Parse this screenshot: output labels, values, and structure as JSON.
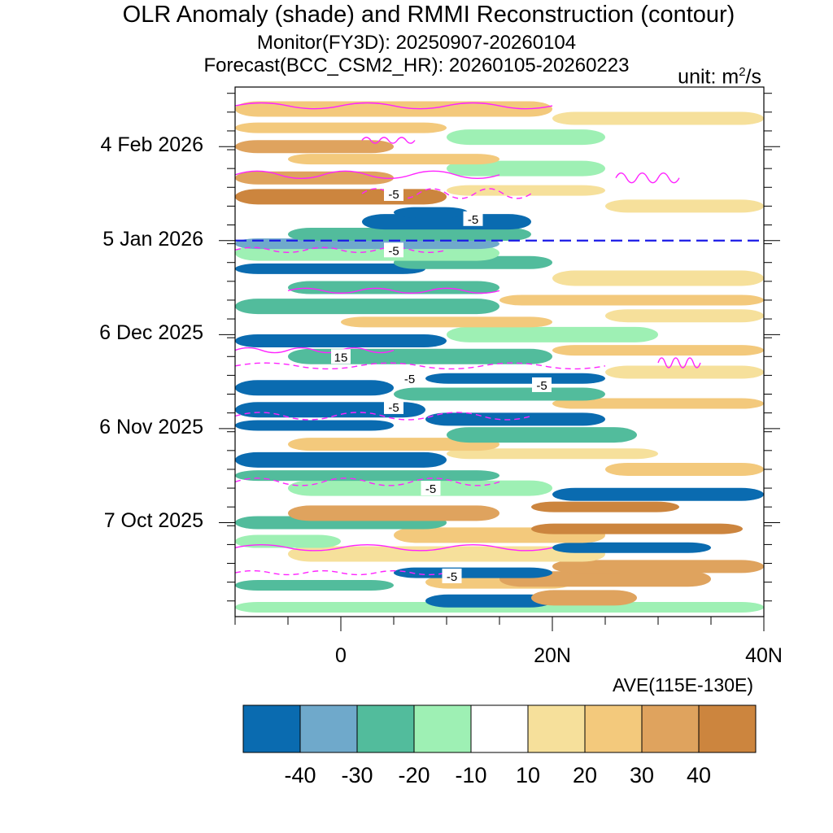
{
  "chart_data": {
    "type": "heatmap",
    "title": "OLR Anomaly (shade) and RMMI Reconstruction (contour)",
    "subtitle_monitor": "Monitor(FY3D): 20250907-20260104",
    "subtitle_forecast": "Forecast(BCC_CSM2_HR): 20260105-20260223",
    "unit_prefix": "unit: m",
    "unit_exp": "2",
    "unit_suffix": "/s",
    "x_axis": {
      "range": [
        -10,
        40
      ],
      "ticks": [
        {
          "value": 0,
          "label": "0"
        },
        {
          "value": 20,
          "label": "20N"
        },
        {
          "value": 40,
          "label": "40N"
        }
      ],
      "note": "AVE(115E-130E)"
    },
    "y_axis": {
      "start_date": "2025-09-07",
      "end_date": "2026-02-23",
      "ticks": [
        {
          "day": 30,
          "label": "7 Oct 2025"
        },
        {
          "day": 60,
          "label": "6 Nov 2025"
        },
        {
          "day": 90,
          "label": "6 Dec 2025"
        },
        {
          "day": 120,
          "label": "5 Jan 2026"
        },
        {
          "day": 150,
          "label": "4 Feb 2026"
        }
      ],
      "forecast_start_day": 120
    },
    "colorbar": {
      "levels": [
        -40,
        -30,
        -20,
        -10,
        10,
        20,
        30,
        40
      ],
      "labels": [
        "-40",
        "-30",
        "-20",
        "-10",
        "10",
        "20",
        "30",
        "40"
      ],
      "colors": [
        "#0a6bb0",
        "#6fa9cb",
        "#52bc9c",
        "#9ef0b4",
        "#ffffff",
        "#f6e09b",
        "#f3c97c",
        "#dfa35e",
        "#cc853e"
      ]
    },
    "olr_bands": [
      {
        "day": 3,
        "lat": [
          -10,
          40
        ],
        "value": -15
      },
      {
        "day": 5,
        "lat": [
          8,
          20
        ],
        "value": -45
      },
      {
        "day": 6,
        "lat": [
          18,
          28
        ],
        "value": 35
      },
      {
        "day": 10,
        "lat": [
          -10,
          5
        ],
        "value": -25
      },
      {
        "day": 11,
        "lat": [
          8,
          22
        ],
        "value": 25
      },
      {
        "day": 12,
        "lat": [
          15,
          35
        ],
        "value": 35
      },
      {
        "day": 14,
        "lat": [
          5,
          20
        ],
        "value": -45
      },
      {
        "day": 16,
        "lat": [
          20,
          40
        ],
        "value": 35
      },
      {
        "day": 20,
        "lat": [
          -5,
          25
        ],
        "value": 15
      },
      {
        "day": 22,
        "lat": [
          20,
          35
        ],
        "value": -45
      },
      {
        "day": 24,
        "lat": [
          -10,
          0
        ],
        "value": -15
      },
      {
        "day": 26,
        "lat": [
          5,
          25
        ],
        "value": 25
      },
      {
        "day": 28,
        "lat": [
          18,
          38
        ],
        "value": 45
      },
      {
        "day": 30,
        "lat": [
          -10,
          10
        ],
        "value": -25
      },
      {
        "day": 33,
        "lat": [
          -5,
          15
        ],
        "value": 35
      },
      {
        "day": 35,
        "lat": [
          18,
          32
        ],
        "value": 45
      },
      {
        "day": 39,
        "lat": [
          20,
          40
        ],
        "value": -45
      },
      {
        "day": 41,
        "lat": [
          -5,
          20
        ],
        "value": -15
      },
      {
        "day": 45,
        "lat": [
          -10,
          15
        ],
        "value": -25
      },
      {
        "day": 47,
        "lat": [
          25,
          40
        ],
        "value": 25
      },
      {
        "day": 50,
        "lat": [
          -10,
          10
        ],
        "value": -45
      },
      {
        "day": 52,
        "lat": [
          10,
          30
        ],
        "value": 15
      },
      {
        "day": 55,
        "lat": [
          -5,
          15
        ],
        "value": 25
      },
      {
        "day": 58,
        "lat": [
          10,
          28
        ],
        "value": -25
      },
      {
        "day": 61,
        "lat": [
          -10,
          5
        ],
        "value": -45
      },
      {
        "day": 63,
        "lat": [
          8,
          25
        ],
        "value": -45
      },
      {
        "day": 66,
        "lat": [
          -10,
          8
        ],
        "value": -45
      },
      {
        "day": 68,
        "lat": [
          20,
          40
        ],
        "value": 25
      },
      {
        "day": 71,
        "lat": [
          5,
          25
        ],
        "value": -25
      },
      {
        "day": 73,
        "lat": [
          -10,
          5
        ],
        "value": -45
      },
      {
        "day": 76,
        "lat": [
          8,
          25
        ],
        "value": -45
      },
      {
        "day": 78,
        "lat": [
          25,
          40
        ],
        "value": 15
      },
      {
        "day": 83,
        "lat": [
          -5,
          20
        ],
        "value": -25
      },
      {
        "day": 85,
        "lat": [
          20,
          40
        ],
        "value": 25
      },
      {
        "day": 88,
        "lat": [
          -10,
          10
        ],
        "value": -45
      },
      {
        "day": 90,
        "lat": [
          10,
          30
        ],
        "value": -15
      },
      {
        "day": 94,
        "lat": [
          0,
          20
        ],
        "value": 25
      },
      {
        "day": 96,
        "lat": [
          25,
          40
        ],
        "value": 15
      },
      {
        "day": 99,
        "lat": [
          -10,
          15
        ],
        "value": -25
      },
      {
        "day": 101,
        "lat": [
          15,
          40
        ],
        "value": 25
      },
      {
        "day": 105,
        "lat": [
          -5,
          15
        ],
        "value": -25
      },
      {
        "day": 108,
        "lat": [
          20,
          40
        ],
        "value": 15
      },
      {
        "day": 111,
        "lat": [
          -10,
          8
        ],
        "value": -45
      },
      {
        "day": 113,
        "lat": [
          5,
          20
        ],
        "value": -25
      },
      {
        "day": 116,
        "lat": [
          -10,
          15
        ],
        "value": -15
      },
      {
        "day": 119,
        "lat": [
          -10,
          15
        ],
        "value": -35
      },
      {
        "day": 122,
        "lat": [
          -5,
          18
        ],
        "value": -25
      },
      {
        "day": 126,
        "lat": [
          2,
          18
        ],
        "value": -45
      },
      {
        "day": 129,
        "lat": [
          5,
          12
        ],
        "value": -45
      },
      {
        "day": 131,
        "lat": [
          25,
          40
        ],
        "value": 15
      },
      {
        "day": 134,
        "lat": [
          -10,
          10
        ],
        "value": 45
      },
      {
        "day": 136,
        "lat": [
          10,
          25
        ],
        "value": 15
      },
      {
        "day": 140,
        "lat": [
          -10,
          5
        ],
        "value": 35
      },
      {
        "day": 143,
        "lat": [
          10,
          25
        ],
        "value": -15
      },
      {
        "day": 146,
        "lat": [
          -5,
          15
        ],
        "value": 25
      },
      {
        "day": 150,
        "lat": [
          -10,
          5
        ],
        "value": 35
      },
      {
        "day": 153,
        "lat": [
          10,
          25
        ],
        "value": -15
      },
      {
        "day": 156,
        "lat": [
          -10,
          10
        ],
        "value": 25
      },
      {
        "day": 159,
        "lat": [
          20,
          40
        ],
        "value": 15
      },
      {
        "day": 162,
        "lat": [
          -10,
          20
        ],
        "value": 25
      }
    ],
    "contour_labels": [
      {
        "day": 13,
        "lat": 10.5,
        "text": "-5"
      },
      {
        "day": 41,
        "lat": 8.5,
        "text": "-5"
      },
      {
        "day": 67,
        "lat": 5,
        "text": "-5"
      },
      {
        "day": 74,
        "lat": 19,
        "text": "-5"
      },
      {
        "day": 76,
        "lat": 6.5,
        "text": "-5"
      },
      {
        "day": 83,
        "lat": 0,
        "text": "15"
      },
      {
        "day": 117,
        "lat": 5,
        "text": "-5"
      },
      {
        "day": 127,
        "lat": 12.5,
        "text": "-5"
      },
      {
        "day": 135,
        "lat": 5,
        "text": "-5"
      }
    ],
    "contour_lines": [
      {
        "dashed": false,
        "day": 22,
        "lat": [
          -10,
          20
        ],
        "amplitude": 1.2
      },
      {
        "dashed": true,
        "day": 14,
        "lat": [
          -10,
          10
        ],
        "amplitude": 0.8
      },
      {
        "dashed": true,
        "day": 43,
        "lat": [
          -10,
          15
        ],
        "amplitude": 1.5
      },
      {
        "dashed": true,
        "day": 64,
        "lat": [
          -10,
          18
        ],
        "amplitude": 1.5
      },
      {
        "dashed": true,
        "day": 80,
        "lat": [
          -10,
          25
        ],
        "amplitude": 1.2
      },
      {
        "dashed": false,
        "day": 85,
        "lat": [
          -10,
          5
        ],
        "amplitude": 1.0
      },
      {
        "dashed": false,
        "day": 81,
        "lat": [
          30,
          34
        ],
        "amplitude": 2.0
      },
      {
        "dashed": false,
        "day": 104,
        "lat": [
          -5,
          15
        ],
        "amplitude": 1.0
      },
      {
        "dashed": true,
        "day": 117,
        "lat": [
          -10,
          10
        ],
        "amplitude": 1.0
      },
      {
        "dashed": true,
        "day": 135,
        "lat": [
          2,
          18
        ],
        "amplitude": 2.0
      },
      {
        "dashed": false,
        "day": 141,
        "lat": [
          -10,
          15
        ],
        "amplitude": 1.5
      },
      {
        "dashed": false,
        "day": 140,
        "lat": [
          26,
          32
        ],
        "amplitude": 2.0
      },
      {
        "dashed": false,
        "day": 152,
        "lat": [
          2,
          7
        ],
        "amplitude": 1.2
      },
      {
        "dashed": false,
        "day": 163,
        "lat": [
          -10,
          20
        ],
        "amplitude": 1.2
      }
    ]
  }
}
